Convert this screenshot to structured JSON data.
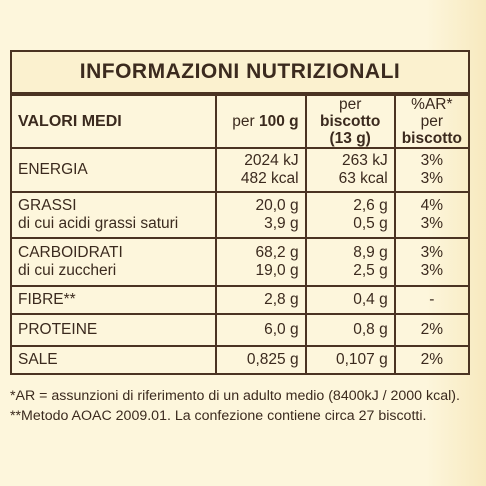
{
  "title": "INFORMAZIONI NUTRIZIONALI",
  "header": {
    "label": "VALORI MEDI",
    "per100_prefix": "per ",
    "per100_bold": "100 g",
    "perbisc_line1_prefix": "per ",
    "perbisc_line1_bold": "biscotto",
    "perbisc_line2": "(13 g)",
    "ar_line1": "%AR*",
    "ar_line2_prefix": "per ",
    "ar_line2_bold": "biscotto"
  },
  "rows": {
    "energia": {
      "label": "ENERGIA",
      "v100_1": "2024 kJ",
      "v100_2": "482 kcal",
      "vb_1": "263 kJ",
      "vb_2": "63 kcal",
      "ar_1": "3%",
      "ar_2": "3%"
    },
    "grassi": {
      "label1": "GRASSI",
      "label2": "di cui acidi grassi saturi",
      "v100_1": "20,0 g",
      "v100_2": "3,9 g",
      "vb_1": "2,6 g",
      "vb_2": "0,5 g",
      "ar_1": "4%",
      "ar_2": "3%"
    },
    "carbo": {
      "label1": "CARBOIDRATI",
      "label2": "di cui zuccheri",
      "v100_1": "68,2 g",
      "v100_2": "19,0 g",
      "vb_1": "8,9 g",
      "vb_2": "2,5 g",
      "ar_1": "3%",
      "ar_2": "3%"
    },
    "fibre": {
      "label": "FIBRE**",
      "v100": "2,8 g",
      "vb": "0,4 g",
      "ar": "-"
    },
    "proteine": {
      "label": "PROTEINE",
      "v100": "6,0 g",
      "vb": "0,8 g",
      "ar": "2%"
    },
    "sale": {
      "label": "SALE",
      "v100": "0,825 g",
      "vb": "0,107 g",
      "ar": "2%"
    }
  },
  "footnotes": {
    "line1": "*AR = assunzioni di riferimento di un adulto medio (8400kJ / 2000 kcal).",
    "line2": "**Metodo AOAC 2009.01. La confezione contiene circa 27 biscotti."
  }
}
